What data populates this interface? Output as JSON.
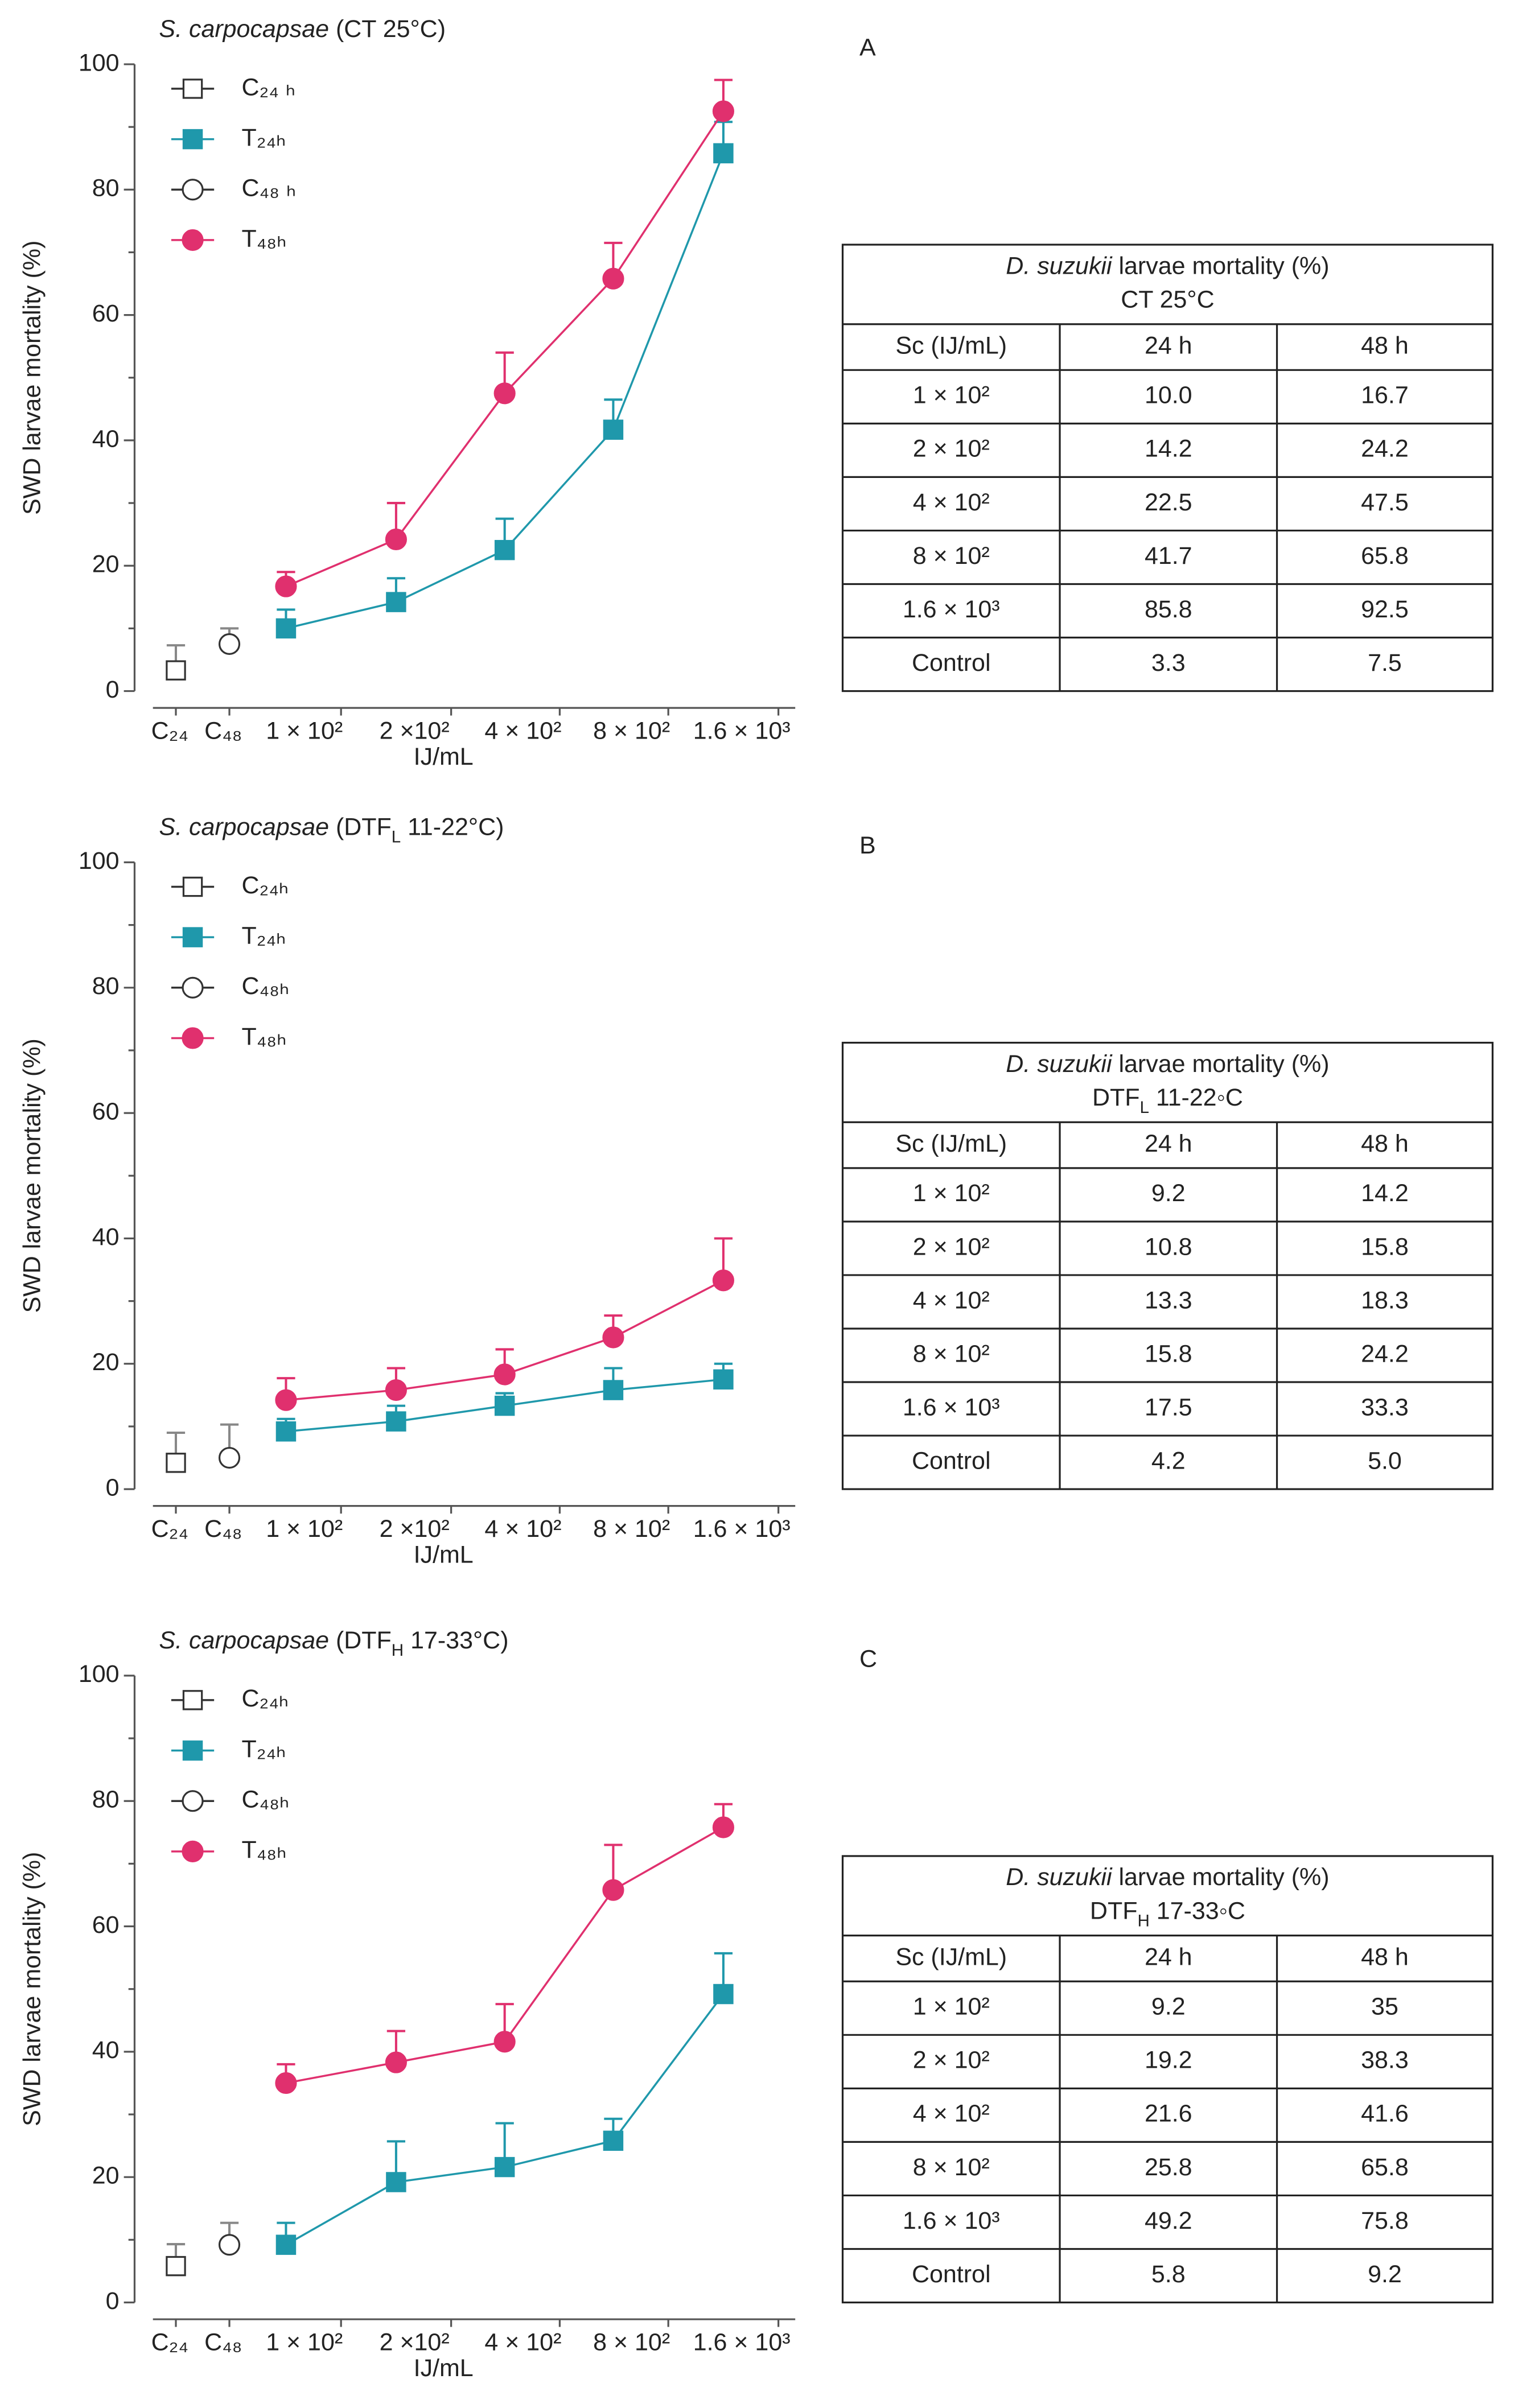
{
  "chart_data": [
    {
      "type": "line",
      "label": "A",
      "title": [
        {
          "text": "S. carpocapsae",
          "style": "italic"
        },
        {
          "text": " (CT 25°C)"
        }
      ],
      "ylabel": "SWD  larvae mortality (%)",
      "xlabel": "IJ/mL",
      "categories": [
        "C₂₄",
        "C₄₈",
        "1 × 10²",
        "2 ×10²",
        "4 × 10²",
        "8 × 10²",
        "1.6 × 10³"
      ],
      "ylim": [
        0,
        100
      ],
      "yticks": [
        0,
        20,
        40,
        60,
        80,
        100
      ],
      "minor_yticks": [
        10,
        30,
        50,
        70,
        90
      ],
      "series": [
        {
          "name": "C₂₄ ₕ",
          "color": "#333333",
          "marker": "square",
          "filled": false,
          "values": [
            3.3,
            null,
            null,
            null,
            null,
            null,
            null
          ],
          "errors": [
            4,
            null,
            null,
            null,
            null,
            null,
            null
          ]
        },
        {
          "name": "T₂₄ₕ",
          "color": "#1f98ab",
          "marker": "square",
          "filled": true,
          "values": [
            null,
            null,
            10.0,
            14.2,
            22.5,
            41.7,
            85.8
          ],
          "errors": [
            null,
            null,
            3,
            3.8,
            5,
            4.8,
            5
          ]
        },
        {
          "name": "C₄₈ ₕ",
          "color": "#333333",
          "marker": "circle",
          "filled": false,
          "values": [
            null,
            7.5,
            null,
            null,
            null,
            null,
            null
          ],
          "errors": [
            null,
            2.5,
            null,
            null,
            null,
            null,
            null
          ]
        },
        {
          "name": "T₄₈ₕ",
          "color": "#e0306e",
          "marker": "circle",
          "filled": true,
          "values": [
            null,
            null,
            16.7,
            24.2,
            47.5,
            65.8,
            92.5
          ],
          "errors": [
            null,
            null,
            2.3,
            5.8,
            6.5,
            5.7,
            5
          ]
        }
      ],
      "table": {
        "title": [
          [
            {
              "text": "D. suzukii",
              "style": "italic"
            },
            {
              "text": " larvae mortality (%)"
            }
          ],
          [
            {
              "text": "CT 25°C"
            }
          ]
        ],
        "header": [
          "Sc (IJ/mL)",
          "24 h",
          "48 h"
        ],
        "rows": [
          [
            "1 × 10²",
            "10.0",
            "16.7"
          ],
          [
            "2 × 10²",
            "14.2",
            "24.2"
          ],
          [
            "4 × 10²",
            "22.5",
            "47.5"
          ],
          [
            "8 × 10²",
            "41.7",
            "65.8"
          ],
          [
            "1.6 × 10³",
            "85.8",
            "92.5"
          ],
          [
            "Control",
            "3.3",
            "7.5"
          ]
        ]
      }
    },
    {
      "type": "line",
      "label": "B",
      "title": [
        {
          "text": "S. carpocapsae",
          "style": "italic"
        },
        {
          "text": " (DTF"
        },
        {
          "text": "L",
          "style": "sub"
        },
        {
          "text": " 11-22°C)"
        }
      ],
      "ylabel": "SWD larvae mortality (%)",
      "xlabel": "IJ/mL",
      "categories": [
        "C₂₄",
        "C₄₈",
        "1 × 10²",
        "2 ×10²",
        "4 × 10²",
        "8 × 10²",
        "1.6 × 10³"
      ],
      "ylim": [
        0,
        100
      ],
      "yticks": [
        0,
        20,
        40,
        60,
        80,
        100
      ],
      "minor_yticks": [
        10,
        30,
        50,
        70,
        90
      ],
      "series": [
        {
          "name": "C₂₄ₕ",
          "color": "#333333",
          "marker": "square",
          "filled": false,
          "values": [
            4.2,
            null,
            null,
            null,
            null,
            null,
            null
          ],
          "errors": [
            4.8,
            null,
            null,
            null,
            null,
            null,
            null
          ]
        },
        {
          "name": "T₂₄ₕ",
          "color": "#1f98ab",
          "marker": "square",
          "filled": true,
          "values": [
            null,
            null,
            9.2,
            10.8,
            13.3,
            15.8,
            17.5
          ],
          "errors": [
            null,
            null,
            2,
            2.5,
            2,
            3.5,
            2.5
          ]
        },
        {
          "name": "C₄₈ₕ",
          "color": "#333333",
          "marker": "circle",
          "filled": false,
          "values": [
            null,
            5.0,
            null,
            null,
            null,
            null,
            null
          ],
          "errors": [
            null,
            5.3,
            null,
            null,
            null,
            null,
            null
          ]
        },
        {
          "name": "T₄₈ₕ",
          "color": "#e0306e",
          "marker": "circle",
          "filled": true,
          "values": [
            null,
            null,
            14.2,
            15.8,
            18.3,
            24.2,
            33.3
          ],
          "errors": [
            null,
            null,
            3.5,
            3.5,
            4,
            3.5,
            6.7
          ]
        }
      ],
      "table": {
        "title": [
          [
            {
              "text": "D. suzukii",
              "style": "italic"
            },
            {
              "text": " larvae mortality (%)"
            }
          ],
          [
            {
              "text": "DTF"
            },
            {
              "text": "L",
              "style": "sub"
            },
            {
              "text": " 11-22◦C"
            }
          ]
        ],
        "header": [
          "Sc (IJ/mL)",
          "24 h",
          "48 h"
        ],
        "rows": [
          [
            "1 × 10²",
            "9.2",
            "14.2"
          ],
          [
            "2 × 10²",
            "10.8",
            "15.8"
          ],
          [
            "4 × 10²",
            "13.3",
            "18.3"
          ],
          [
            "8 × 10²",
            "15.8",
            "24.2"
          ],
          [
            "1.6 × 10³",
            "17.5",
            "33.3"
          ],
          [
            "Control",
            "4.2",
            "5.0"
          ]
        ]
      }
    },
    {
      "type": "line",
      "label": "C",
      "title": [
        {
          "text": "S. carpocapsae",
          "style": "italic"
        },
        {
          "text": " (DTF"
        },
        {
          "text": "H",
          "style": "sub"
        },
        {
          "text": " 17-33°C)"
        }
      ],
      "ylabel": "SWD larvae mortality (%)",
      "xlabel": "IJ/mL",
      "categories": [
        "C₂₄",
        "C₄₈",
        "1 × 10²",
        "2 ×10²",
        "4 × 10²",
        "8 × 10²",
        "1.6 × 10³"
      ],
      "ylim": [
        0,
        100
      ],
      "yticks": [
        0,
        20,
        40,
        60,
        80,
        100
      ],
      "minor_yticks": [
        10,
        30,
        50,
        70,
        90
      ],
      "series": [
        {
          "name": "C₂₄ₕ",
          "color": "#333333",
          "marker": "square",
          "filled": false,
          "values": [
            5.8,
            null,
            null,
            null,
            null,
            null,
            null
          ],
          "errors": [
            3.5,
            null,
            null,
            null,
            null,
            null,
            null
          ]
        },
        {
          "name": "T₂₄ₕ",
          "color": "#1f98ab",
          "marker": "square",
          "filled": true,
          "values": [
            null,
            null,
            9.2,
            19.2,
            21.6,
            25.8,
            49.2
          ],
          "errors": [
            null,
            null,
            3.5,
            6.5,
            7,
            3.5,
            6.5
          ]
        },
        {
          "name": "C₄₈ₕ",
          "color": "#333333",
          "marker": "circle",
          "filled": false,
          "values": [
            null,
            9.2,
            null,
            null,
            null,
            null,
            null
          ],
          "errors": [
            null,
            3.5,
            null,
            null,
            null,
            null,
            null
          ]
        },
        {
          "name": "T₄₈ₕ",
          "color": "#e0306e",
          "marker": "circle",
          "filled": true,
          "values": [
            null,
            null,
            35,
            38.3,
            41.6,
            65.8,
            75.8
          ],
          "errors": [
            null,
            null,
            3,
            5,
            6,
            7.2,
            3.7
          ]
        }
      ],
      "table": {
        "title": [
          [
            {
              "text": "D. suzukii",
              "style": "italic"
            },
            {
              "text": " larvae mortality (%)"
            }
          ],
          [
            {
              "text": "DTF"
            },
            {
              "text": "H",
              "style": "sub"
            },
            {
              "text": " 17-33◦C"
            }
          ]
        ],
        "header": [
          "Sc (IJ/mL)",
          "24 h",
          "48 h"
        ],
        "rows": [
          [
            "1 × 10²",
            "9.2",
            "35"
          ],
          [
            "2 × 10²",
            "19.2",
            "38.3"
          ],
          [
            "4 × 10²",
            "21.6",
            "41.6"
          ],
          [
            "8 × 10²",
            "25.8",
            "65.8"
          ],
          [
            "1.6 × 10³",
            "49.2",
            "75.8"
          ],
          [
            "Control",
            "5.8",
            "9.2"
          ]
        ]
      }
    }
  ]
}
